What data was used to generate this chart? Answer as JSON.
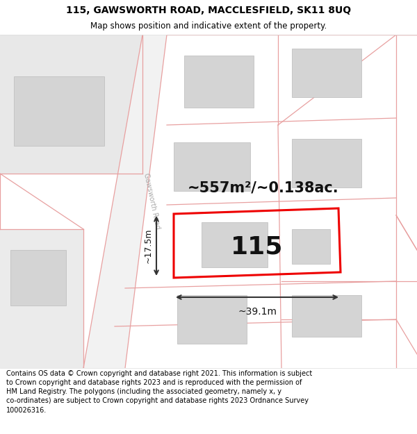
{
  "title_line1": "115, GAWSWORTH ROAD, MACCLESFIELD, SK11 8UQ",
  "title_line2": "Map shows position and indicative extent of the property.",
  "footer_text": "Contains OS data © Crown copyright and database right 2021. This information is subject to Crown copyright and database rights 2023 and is reproduced with the permission of HM Land Registry. The polygons (including the associated geometry, namely x, y co-ordinates) are subject to Crown copyright and database rights 2023 Ordnance Survey 100026316.",
  "label_area": "~557m²/~0.138ac.",
  "label_number": "115",
  "label_width": "~39.1m",
  "label_height": "~17.5m",
  "road_label": "Gawsworth Road",
  "pink": "#e8a0a0",
  "building_fill": "#d4d4d4",
  "building_edge": "#bbbbbb",
  "plot_edge": "#ee0000",
  "dim_color": "#333333",
  "road_color": "#e0e0e0",
  "road_edge_color": "#e8a0a0",
  "map_bg": "#ffffff",
  "title_bg": "#ffffff",
  "footer_bg": "#ffffff"
}
